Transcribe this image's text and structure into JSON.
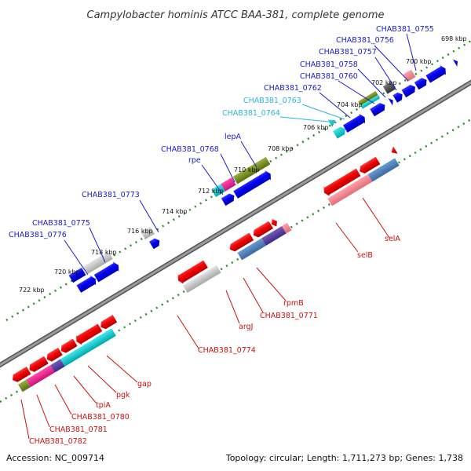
{
  "title": "Campylobacter hominis ATCC BAA-381, complete genome",
  "accession": "Accession: NC_009714",
  "summary": "Topology: circular; Length: 1,711,273 bp; Genes: 1,738",
  "colors": {
    "forward_label": "#1a1acc",
    "reverse_label": "#cc1111",
    "highlight_label": "#2bb6d9",
    "backbone": "#888888",
    "dots": "#2e8b2e"
  },
  "kbp_ticks": [
    "698 kbp",
    "700 kbp",
    "702 kbp",
    "704 kbp",
    "706 kbp",
    "708 kbp",
    "710 kbp",
    "712 kbp",
    "714 kbp",
    "716 kbp",
    "718 kbp",
    "720 kbp",
    "722 kbp"
  ],
  "forward_labels": [
    {
      "text": "CHAB381_0755",
      "style": "forward"
    },
    {
      "text": "CHAB381_0756",
      "style": "forward"
    },
    {
      "text": "CHAB381_0757",
      "style": "forward"
    },
    {
      "text": "CHAB381_0758",
      "style": "forward"
    },
    {
      "text": "CHAB381_0760",
      "style": "forward"
    },
    {
      "text": "CHAB381_0762",
      "style": "forward"
    },
    {
      "text": "CHAB381_0763",
      "style": "highlight"
    },
    {
      "text": "CHAB381_0764",
      "style": "highlight"
    },
    {
      "text": "lepA",
      "style": "forward"
    },
    {
      "text": "CHAB381_0768",
      "style": "forward"
    },
    {
      "text": "rpe",
      "style": "forward"
    },
    {
      "text": "CHAB381_0773",
      "style": "forward"
    },
    {
      "text": "CHAB381_0775",
      "style": "forward"
    },
    {
      "text": "CHAB381_0776",
      "style": "forward"
    }
  ],
  "reverse_labels": [
    {
      "text": "selA"
    },
    {
      "text": "selB"
    },
    {
      "text": "rpmB"
    },
    {
      "text": "CHAB381_0771"
    },
    {
      "text": "argJ"
    },
    {
      "text": "CHAB381_0774"
    },
    {
      "text": "gap"
    },
    {
      "text": "pgk"
    },
    {
      "text": "tpiA"
    },
    {
      "text": "CHAB381_0780"
    },
    {
      "text": "CHAB381_0781"
    },
    {
      "text": "CHAB381_0782"
    }
  ]
}
